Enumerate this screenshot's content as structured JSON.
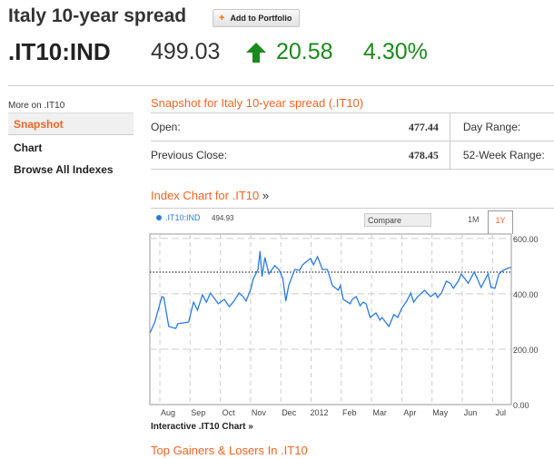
{
  "header": {
    "title": "Italy 10-year spread",
    "add_button": "Add to Portfolio",
    "ticker": ".IT10:IND",
    "price": "499.03",
    "change": "20.58",
    "change_pct": "4.30%",
    "direction": "up",
    "up_color": "#1a8a1a"
  },
  "sidebar": {
    "label": "More on .IT10",
    "items": [
      {
        "label": "Snapshot",
        "active": true
      },
      {
        "label": "Chart"
      },
      {
        "label": "Browse All Indexes"
      }
    ]
  },
  "snapshot": {
    "title": "Snapshot for Italy 10-year spread (.IT10)",
    "rows": [
      {
        "label": "Open:",
        "value": "477.44",
        "label2": "Day Range:"
      },
      {
        "label": "Previous Close:",
        "value": "478.45",
        "label2": "52-Week Range:"
      }
    ]
  },
  "chart_section": {
    "title": "Index Chart for .IT10",
    "title_suffix": "»",
    "legend_name": ".IT10:IND",
    "legend_value": "494.93",
    "compare_placeholder": "Compare",
    "ranges": [
      "1M",
      "1Y"
    ],
    "active_range": "1Y",
    "interactive_link": "Interactive .IT10 Chart »",
    "accent": "#f26522",
    "line_color": "#2a7ae2"
  },
  "chart_data": {
    "type": "line",
    "ylim": [
      0,
      616
    ],
    "yticks": [
      "600.00",
      "400.00",
      "200.00",
      "0.00"
    ],
    "ytick_values": [
      600,
      400,
      200,
      0
    ],
    "xticks": [
      "Aug",
      "Sep",
      "Oct",
      "Nov",
      "Dec",
      "2012",
      "Feb",
      "Mar",
      "Apr",
      "May",
      "Jun",
      "Jul"
    ],
    "reference_line": 478.45,
    "grid": true,
    "series": [
      {
        "x": [
          "2011-07-22",
          "2011-07-27",
          "2011-08-03",
          "2011-08-05",
          "2011-08-10",
          "2011-08-17",
          "2011-08-19",
          "2011-08-30",
          "2011-09-04",
          "2011-09-08",
          "2011-09-13",
          "2011-09-17",
          "2011-09-21",
          "2011-09-29",
          "2011-10-05",
          "2011-10-10",
          "2011-10-14",
          "2011-10-20",
          "2011-10-24",
          "2011-10-27",
          "2011-11-01",
          "2011-11-03",
          "2011-11-08",
          "2011-11-10",
          "2011-11-12",
          "2011-11-15",
          "2011-11-19",
          "2011-11-25",
          "2011-11-29",
          "2011-12-03",
          "2011-12-06",
          "2011-12-09",
          "2011-12-15",
          "2011-12-20",
          "2011-12-23",
          "2011-12-31",
          "2012-01-03",
          "2012-01-07",
          "2012-01-12",
          "2012-01-17",
          "2012-01-22",
          "2012-01-28",
          "2012-01-30",
          "2012-02-02",
          "2012-02-09",
          "2012-02-11",
          "2012-02-15",
          "2012-02-19",
          "2012-02-22",
          "2012-02-25",
          "2012-02-29",
          "2012-03-06",
          "2012-03-10",
          "2012-03-12",
          "2012-03-19",
          "2012-03-24",
          "2012-03-28",
          "2012-04-01",
          "2012-04-06",
          "2012-04-10",
          "2012-04-13",
          "2012-04-17",
          "2012-04-24",
          "2012-04-30",
          "2012-05-05",
          "2012-05-07",
          "2012-05-11",
          "2012-05-16",
          "2012-05-20",
          "2012-05-23",
          "2012-05-28",
          "2012-05-31",
          "2012-06-07",
          "2012-06-13",
          "2012-06-16",
          "2012-06-20",
          "2012-06-27",
          "2012-06-30",
          "2012-07-04",
          "2012-07-08",
          "2012-07-12",
          "2012-07-17",
          "2012-07-20"
        ],
        "y": [
          259,
          298,
          390,
          386,
          282,
          275,
          292,
          298,
          370,
          341,
          397,
          370,
          403,
          364,
          380,
          354,
          370,
          403,
          390,
          374,
          420,
          452,
          488,
          554,
          462,
          531,
          472,
          502,
          488,
          456,
          374,
          430,
          488,
          485,
          505,
          528,
          505,
          534,
          488,
          488,
          430,
          413,
          430,
          380,
          364,
          380,
          390,
          357,
          370,
          364,
          315,
          331,
          305,
          315,
          282,
          325,
          315,
          348,
          374,
          403,
          370,
          390,
          413,
          390,
          403,
          387,
          403,
          446,
          438,
          420,
          446,
          472,
          438,
          479,
          456,
          423,
          472,
          423,
          420,
          472,
          485,
          492,
          495
        ]
      }
    ]
  },
  "footer": {
    "gainers_title": "Top Gainers & Losers In .IT10"
  }
}
